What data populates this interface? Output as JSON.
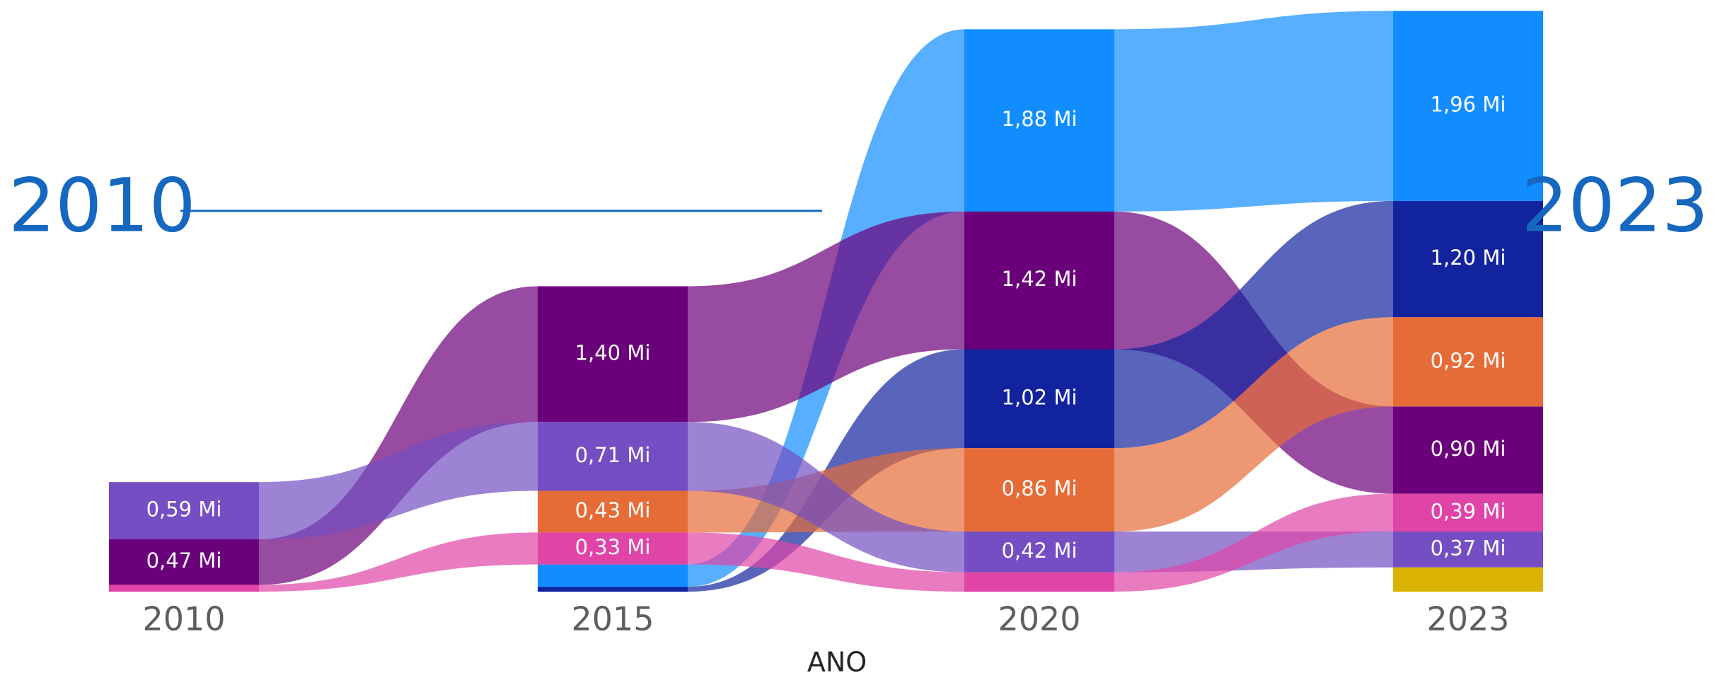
{
  "chart_data": {
    "type": "ribbon",
    "x_axis_title": "ANO",
    "range_label": {
      "start": "2010",
      "end": "2023"
    },
    "categories": [
      "2010",
      "2015",
      "2020",
      "2023"
    ],
    "series": [
      {
        "color": "#118dff",
        "values": [
          null,
          0.23,
          1.88,
          1.96
        ],
        "value_labels": [
          null,
          null,
          "1,88 Mi",
          "1,96 Mi"
        ]
      },
      {
        "color": "#6b007b",
        "values": [
          0.47,
          1.4,
          1.42,
          0.9
        ],
        "value_labels": [
          "0,47 Mi",
          "1,40 Mi",
          "1,42 Mi",
          "0,90 Mi"
        ]
      },
      {
        "color": "#12239e",
        "values": [
          null,
          0.05,
          1.02,
          1.2
        ],
        "value_labels": [
          null,
          null,
          "1,02 Mi",
          "1,20 Mi"
        ]
      },
      {
        "color": "#e66c37",
        "values": [
          null,
          0.43,
          0.86,
          0.92
        ],
        "value_labels": [
          null,
          "0,43 Mi",
          "0,86 Mi",
          "0,92 Mi"
        ]
      },
      {
        "color": "#744ec2",
        "values": [
          0.59,
          0.71,
          0.42,
          0.37
        ],
        "value_labels": [
          "0,59 Mi",
          "0,71 Mi",
          "0,42 Mi",
          "0,37 Mi"
        ]
      },
      {
        "color": "#e044a7",
        "values": [
          0.07,
          0.33,
          0.2,
          0.39
        ],
        "value_labels": [
          null,
          "0,33 Mi",
          null,
          "0,39 Mi"
        ]
      },
      {
        "color": "#d9b300",
        "values": [
          null,
          null,
          null,
          0.25
        ],
        "value_labels": [
          null,
          null,
          null,
          null
        ]
      }
    ]
  }
}
